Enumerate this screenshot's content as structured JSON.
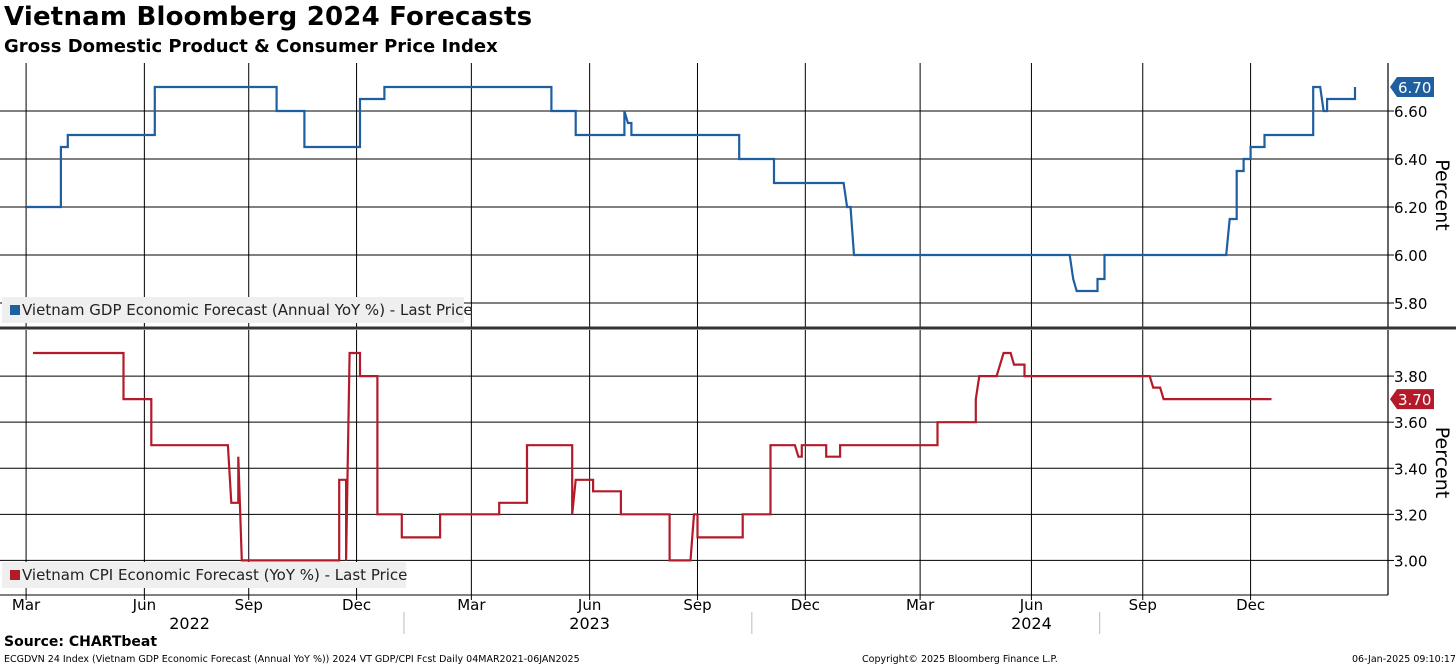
{
  "title": "Vietnam Bloomberg 2024 Forecasts",
  "subtitle": "Gross Domestic Product & Consumer Price Index",
  "source": "Source: CHARTbeat",
  "footer": {
    "left": "ECGDVN 24 Index (Vietnam GDP Economic Forecast (Annual YoY %)) 2024 VT GDP/CPI Fcst  Daily 04MAR2021-06JAN2025",
    "center": "Copyright© 2025 Bloomberg Finance L.P.",
    "right": "06-Jan-2025 09:10:17"
  },
  "colors": {
    "gdp": "#1f5fa0",
    "cpi": "#b31b2a"
  },
  "chart_data": [
    {
      "type": "line",
      "name": "gdp-panel",
      "series_name": "Vietnam GDP Economic Forecast (Annual YoY %) - Last Price",
      "ylabel": "Percent",
      "ylim": [
        5.7,
        6.8
      ],
      "yticks": [
        5.8,
        6.0,
        6.2,
        6.4,
        6.6
      ],
      "ytick_labels": [
        "5.80",
        "6.00",
        "6.20",
        "6.40",
        "6.60"
      ],
      "last_value": 6.7,
      "last_label": "6.70",
      "points": [
        [
          2022.0,
          6.2
        ],
        [
          2022.1,
          6.2
        ],
        [
          2022.1,
          6.45
        ],
        [
          2022.12,
          6.45
        ],
        [
          2022.12,
          6.5
        ],
        [
          2022.37,
          6.5
        ],
        [
          2022.37,
          6.7
        ],
        [
          2022.72,
          6.7
        ],
        [
          2022.72,
          6.6
        ],
        [
          2022.8,
          6.6
        ],
        [
          2022.8,
          6.45
        ],
        [
          2022.96,
          6.45
        ],
        [
          2022.96,
          6.65
        ],
        [
          2023.03,
          6.65
        ],
        [
          2023.03,
          6.7
        ],
        [
          2023.51,
          6.7
        ],
        [
          2023.51,
          6.6
        ],
        [
          2023.58,
          6.6
        ],
        [
          2023.58,
          6.5
        ],
        [
          2023.72,
          6.5
        ],
        [
          2023.72,
          6.6
        ],
        [
          2023.73,
          6.55
        ],
        [
          2023.74,
          6.55
        ],
        [
          2023.74,
          6.5
        ],
        [
          2024.05,
          6.5
        ],
        [
          2024.05,
          6.4
        ],
        [
          2024.15,
          6.4
        ],
        [
          2024.15,
          6.3
        ],
        [
          2024.35,
          6.3
        ],
        [
          2024.36,
          6.2
        ],
        [
          2024.37,
          6.2
        ],
        [
          2024.38,
          6.0
        ],
        [
          2025.0,
          6.0
        ],
        [
          2025.01,
          5.9
        ],
        [
          2025.02,
          5.85
        ],
        [
          2025.08,
          5.85
        ],
        [
          2025.08,
          5.9
        ],
        [
          2025.1,
          5.9
        ],
        [
          2025.1,
          6.0
        ],
        [
          2025.45,
          6.0
        ],
        [
          2025.46,
          6.15
        ],
        [
          2025.48,
          6.15
        ],
        [
          2025.48,
          6.35
        ],
        [
          2025.5,
          6.35
        ],
        [
          2025.5,
          6.4
        ],
        [
          2025.52,
          6.4
        ],
        [
          2025.52,
          6.45
        ],
        [
          2025.56,
          6.45
        ],
        [
          2025.56,
          6.5
        ],
        [
          2025.7,
          6.5
        ],
        [
          2025.7,
          6.7
        ],
        [
          2025.72,
          6.7
        ],
        [
          2025.73,
          6.6
        ],
        [
          2025.74,
          6.6
        ],
        [
          2025.74,
          6.65
        ],
        [
          2025.82,
          6.65
        ],
        [
          2025.82,
          6.7
        ]
      ]
    },
    {
      "type": "line",
      "name": "cpi-panel",
      "series_name": "Vietnam CPI Economic Forecast (YoY %) - Last Price",
      "ylabel": "Percent",
      "ylim": [
        2.85,
        4.0
      ],
      "yticks": [
        3.0,
        3.2,
        3.4,
        3.6,
        3.8
      ],
      "ytick_labels": [
        "3.00",
        "3.20",
        "3.40",
        "3.60",
        "3.80"
      ],
      "last_value": 3.7,
      "last_label": "3.70",
      "points": [
        [
          2022.02,
          3.9
        ],
        [
          2022.28,
          3.9
        ],
        [
          2022.28,
          3.7
        ],
        [
          2022.36,
          3.7
        ],
        [
          2022.36,
          3.5
        ],
        [
          2022.58,
          3.5
        ],
        [
          2022.59,
          3.25
        ],
        [
          2022.61,
          3.25
        ],
        [
          2022.61,
          3.45
        ],
        [
          2022.62,
          3.0
        ],
        [
          2022.9,
          3.0
        ],
        [
          2022.9,
          3.35
        ],
        [
          2022.92,
          3.35
        ],
        [
          2022.92,
          3.0
        ],
        [
          2022.93,
          3.9
        ],
        [
          2022.96,
          3.9
        ],
        [
          2022.96,
          3.8
        ],
        [
          2023.01,
          3.8
        ],
        [
          2023.01,
          3.2
        ],
        [
          2023.08,
          3.2
        ],
        [
          2023.08,
          3.1
        ],
        [
          2023.19,
          3.1
        ],
        [
          2023.19,
          3.2
        ],
        [
          2023.36,
          3.2
        ],
        [
          2023.36,
          3.25
        ],
        [
          2023.44,
          3.25
        ],
        [
          2023.44,
          3.5
        ],
        [
          2023.57,
          3.5
        ],
        [
          2023.57,
          3.2
        ],
        [
          2023.58,
          3.35
        ],
        [
          2023.63,
          3.35
        ],
        [
          2023.63,
          3.3
        ],
        [
          2023.71,
          3.3
        ],
        [
          2023.71,
          3.2
        ],
        [
          2023.85,
          3.2
        ],
        [
          2023.85,
          3.0
        ],
        [
          2023.91,
          3.0
        ],
        [
          2023.92,
          3.2
        ],
        [
          2023.93,
          3.2
        ],
        [
          2023.93,
          3.1
        ],
        [
          2024.06,
          3.1
        ],
        [
          2024.06,
          3.2
        ],
        [
          2024.14,
          3.2
        ],
        [
          2024.14,
          3.5
        ],
        [
          2024.21,
          3.5
        ],
        [
          2024.22,
          3.45
        ],
        [
          2024.23,
          3.45
        ],
        [
          2024.23,
          3.5
        ],
        [
          2024.3,
          3.5
        ],
        [
          2024.3,
          3.45
        ],
        [
          2024.34,
          3.45
        ],
        [
          2024.34,
          3.5
        ],
        [
          2024.62,
          3.5
        ],
        [
          2024.62,
          3.6
        ],
        [
          2024.73,
          3.6
        ],
        [
          2024.73,
          3.7
        ],
        [
          2024.74,
          3.8
        ],
        [
          2024.79,
          3.8
        ],
        [
          2024.8,
          3.85
        ],
        [
          2024.81,
          3.9
        ],
        [
          2024.83,
          3.9
        ],
        [
          2024.84,
          3.85
        ],
        [
          2024.87,
          3.85
        ],
        [
          2024.87,
          3.8
        ],
        [
          2025.23,
          3.8
        ],
        [
          2025.24,
          3.75
        ],
        [
          2025.26,
          3.75
        ],
        [
          2025.27,
          3.7
        ],
        [
          2025.58,
          3.7
        ]
      ]
    }
  ],
  "x_axis": {
    "month_ticks": [
      {
        "label": "Mar",
        "x": 2022.0
      },
      {
        "label": "Jun",
        "x": 2022.34
      },
      {
        "label": "Sep",
        "x": 2022.64
      },
      {
        "label": "Dec",
        "x": 2022.95
      },
      {
        "label": "Mar",
        "x": 2023.28
      },
      {
        "label": "Jun",
        "x": 2023.62
      },
      {
        "label": "Sep",
        "x": 2023.93
      },
      {
        "label": "Dec",
        "x": 2024.24
      },
      {
        "label": "Mar",
        "x": 2024.57
      },
      {
        "label": "Jun",
        "x": 2024.89
      },
      {
        "label": "Sep",
        "x": 2025.21
      },
      {
        "label": "Dec",
        "x": 2025.52
      }
    ],
    "year_labels": [
      {
        "label": "2022",
        "x": 2022.47
      },
      {
        "label": "2023",
        "x": 2023.62
      },
      {
        "label": "2024",
        "x": 2024.89
      }
    ],
    "year_separators": [
      2023.0,
      2024.0,
      2025.0
    ]
  }
}
